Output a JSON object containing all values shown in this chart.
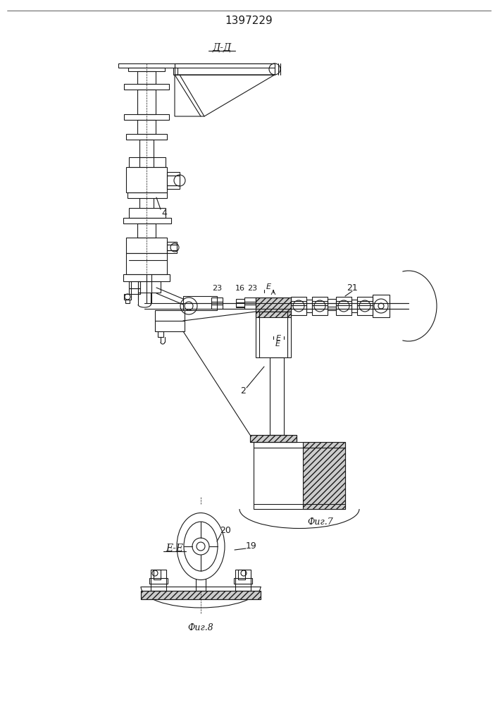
{
  "patent_number": "1397229",
  "title_dd": "Д-Д",
  "fig7_label": "Фиг.7",
  "fig8_label": "Фиг.8",
  "lc": "#1a1a1a",
  "bg": "#ffffff",
  "lw": 0.8
}
